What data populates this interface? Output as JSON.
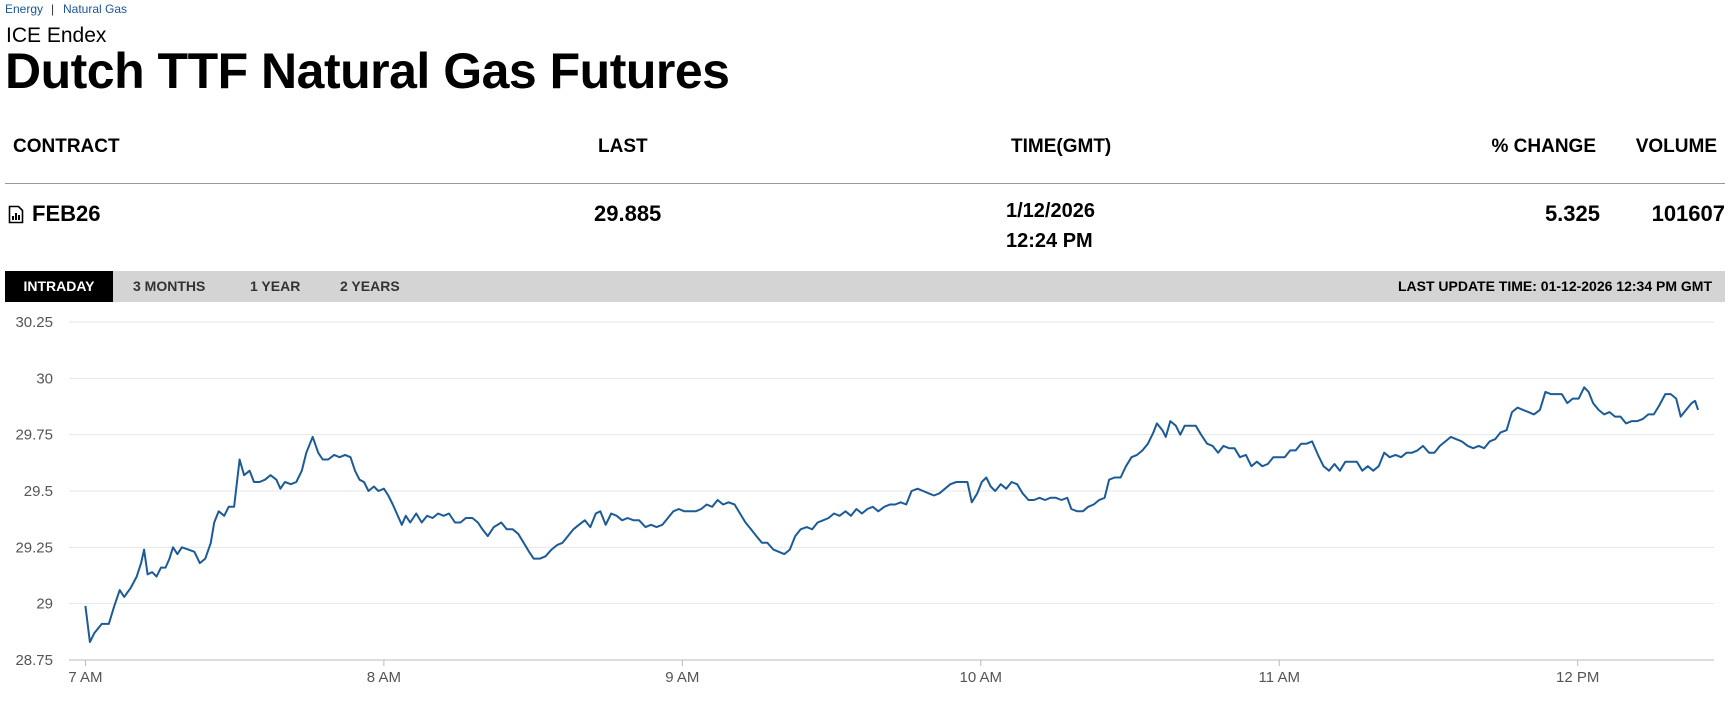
{
  "breadcrumb": {
    "items": [
      "Energy",
      "Natural Gas"
    ],
    "separator": "|"
  },
  "header": {
    "exchange": "ICE Endex",
    "title": "Dutch TTF Natural Gas Futures"
  },
  "table": {
    "columns": [
      "CONTRACT",
      "LAST",
      "TIME(GMT)",
      "% CHANGE",
      "VOLUME"
    ],
    "rows": [
      [
        "FEB26",
        "29.885",
        [
          "1/12/2026",
          "12:24 PM"
        ],
        "5.325",
        "101607"
      ]
    ]
  },
  "tabs": {
    "items": [
      "INTRADAY",
      "3 MONTHS",
      "1 YEAR",
      "2 YEARS"
    ],
    "active": 0
  },
  "last_update": "LAST UPDATE TIME: 01-12-2026 12:34 PM GMT",
  "chart_data": {
    "type": "line",
    "color": "#1d5b96",
    "grid": true,
    "xlim": [
      -3.3,
      327.4
    ],
    "xticks": [
      {
        "value": 0,
        "label": "7 AM"
      },
      {
        "value": 60,
        "label": "8 AM"
      },
      {
        "value": 120,
        "label": "9 AM"
      },
      {
        "value": 180,
        "label": "10 AM"
      },
      {
        "value": 240,
        "label": "11 AM"
      },
      {
        "value": 300,
        "label": "12 PM"
      }
    ],
    "ylim": [
      28.75,
      30.25
    ],
    "yticks": [
      28.75,
      29,
      29.25,
      29.5,
      29.75,
      30,
      30.25
    ],
    "x": [
      0,
      0.9,
      1.8,
      3.3,
      4.7,
      5.8,
      6.9,
      7.8,
      9.1,
      10.3,
      11.2,
      11.8,
      12.5,
      13.4,
      14.3,
      15.2,
      16.1,
      16.9,
      17.6,
      18.5,
      19.4,
      20.7,
      21.9,
      23.0,
      24.1,
      25.2,
      25.9,
      26.8,
      27.9,
      28.8,
      29.9,
      31.0,
      31.9,
      33.0,
      33.9,
      35.0,
      36.1,
      37.2,
      38.4,
      39.2,
      40.1,
      41.3,
      42.4,
      43.5,
      44.4,
      45.7,
      46.8,
      47.7,
      48.8,
      50.0,
      51.1,
      52.2,
      53.3,
      54.2,
      55.1,
      56.0,
      56.9,
      58.0,
      58.9,
      60.0,
      60.9,
      61.8,
      63.6,
      64.4,
      65.3,
      66.5,
      67.6,
      68.7,
      69.8,
      70.9,
      72.0,
      73.1,
      74.3,
      75.4,
      76.5,
      77.8,
      78.9,
      79.8,
      80.9,
      82.1,
      83.6,
      84.7,
      85.9,
      87.0,
      88.1,
      89.2,
      90.1,
      91.4,
      92.5,
      93.7,
      94.8,
      95.9,
      97.0,
      98.1,
      99.2,
      100.4,
      101.5,
      102.6,
      103.5,
      104.6,
      105.7,
      106.8,
      107.9,
      109.0,
      110.2,
      111.3,
      112.6,
      113.7,
      114.8,
      116.0,
      117.1,
      118.2,
      119.3,
      120.4,
      121.5,
      122.7,
      123.8,
      124.9,
      126.0,
      127.1,
      128.2,
      129.3,
      130.5,
      131.6,
      132.7,
      133.8,
      134.9,
      136.0,
      137.1,
      138.3,
      139.4,
      140.5,
      141.6,
      142.7,
      143.8,
      145.0,
      146.1,
      147.2,
      148.3,
      149.4,
      150.5,
      151.6,
      152.8,
      153.9,
      155.0,
      156.1,
      157.2,
      158.3,
      159.4,
      160.6,
      161.7,
      162.8,
      163.9,
      165.0,
      166.1,
      167.3,
      168.4,
      169.5,
      170.6,
      171.7,
      172.8,
      173.9,
      175.1,
      176.2,
      177.3,
      178.2,
      179.3,
      180.2,
      181.1,
      182.0,
      182.9,
      184.0,
      185.1,
      186.2,
      187.3,
      188.4,
      189.6,
      190.7,
      191.8,
      192.9,
      194.0,
      195.1,
      196.2,
      197.4,
      198.2,
      199.4,
      200.5,
      201.6,
      202.7,
      203.8,
      204.9,
      205.8,
      206.9,
      208.1,
      209.2,
      210.3,
      211.4,
      212.5,
      213.6,
      214.7,
      215.4,
      216.5,
      217.2,
      218.1,
      219.2,
      220.1,
      221.0,
      222.1,
      223.2,
      224.3,
      225.5,
      226.6,
      227.7,
      228.8,
      229.9,
      231.0,
      232.1,
      233.3,
      234.4,
      235.5,
      236.6,
      237.7,
      238.8,
      240.0,
      241.1,
      242.2,
      243.3,
      244.4,
      245.5,
      246.6,
      247.8,
      248.9,
      250.0,
      251.1,
      252.2,
      253.3,
      254.4,
      255.6,
      256.7,
      257.8,
      258.9,
      260.0,
      261.1,
      262.2,
      263.4,
      264.5,
      265.6,
      266.7,
      267.8,
      268.9,
      270.1,
      271.2,
      272.3,
      273.4,
      274.5,
      275.6,
      276.7,
      277.9,
      279.0,
      280.1,
      281.2,
      282.3,
      283.4,
      284.5,
      285.7,
      286.8,
      287.9,
      289.0,
      290.1,
      291.2,
      292.4,
      293.5,
      294.6,
      295.7,
      296.8,
      297.9,
      299.0,
      300.2,
      301.3,
      302.2,
      303.1,
      304.2,
      305.3,
      306.4,
      307.5,
      308.6,
      309.7,
      310.9,
      312.0,
      313.1,
      314.2,
      315.3,
      316.4,
      317.6,
      318.7,
      319.8,
      320.7,
      321.8,
      322.9,
      323.6,
      324.2
    ],
    "values": [
      28.99,
      28.83,
      28.87,
      28.91,
      28.91,
      28.99,
      29.06,
      29.03,
      29.07,
      29.12,
      29.18,
      29.24,
      29.13,
      29.14,
      29.12,
      29.16,
      29.16,
      29.2,
      29.25,
      29.22,
      29.25,
      29.24,
      29.23,
      29.18,
      29.2,
      29.27,
      29.36,
      29.41,
      29.39,
      29.43,
      29.43,
      29.64,
      29.57,
      29.59,
      29.54,
      29.54,
      29.55,
      29.57,
      29.55,
      29.51,
      29.54,
      29.53,
      29.54,
      29.59,
      29.67,
      29.74,
      29.67,
      29.64,
      29.64,
      29.66,
      29.65,
      29.66,
      29.65,
      29.59,
      29.55,
      29.54,
      29.5,
      29.52,
      29.5,
      29.51,
      29.48,
      29.44,
      29.35,
      29.39,
      29.36,
      29.4,
      29.36,
      29.39,
      29.38,
      29.4,
      29.39,
      29.4,
      29.36,
      29.36,
      29.38,
      29.38,
      29.36,
      29.33,
      29.3,
      29.34,
      29.36,
      29.33,
      29.33,
      29.31,
      29.27,
      29.23,
      29.2,
      29.2,
      29.21,
      29.24,
      29.26,
      29.27,
      29.3,
      29.33,
      29.35,
      29.37,
      29.34,
      29.4,
      29.41,
      29.35,
      29.4,
      29.39,
      29.37,
      29.38,
      29.37,
      29.37,
      29.34,
      29.35,
      29.34,
      29.35,
      29.38,
      29.41,
      29.42,
      29.41,
      29.41,
      29.41,
      29.42,
      29.44,
      29.43,
      29.46,
      29.44,
      29.45,
      29.44,
      29.4,
      29.36,
      29.33,
      29.3,
      29.27,
      29.27,
      29.24,
      29.23,
      29.22,
      29.24,
      29.3,
      29.33,
      29.34,
      29.33,
      29.36,
      29.37,
      29.38,
      29.4,
      29.39,
      29.41,
      29.39,
      29.42,
      29.4,
      29.42,
      29.43,
      29.41,
      29.43,
      29.44,
      29.44,
      29.45,
      29.44,
      29.5,
      29.51,
      29.5,
      29.49,
      29.48,
      29.49,
      29.51,
      29.53,
      29.54,
      29.54,
      29.54,
      29.45,
      29.49,
      29.54,
      29.56,
      29.52,
      29.5,
      29.53,
      29.51,
      29.54,
      29.53,
      29.49,
      29.46,
      29.46,
      29.47,
      29.46,
      29.47,
      29.47,
      29.46,
      29.47,
      29.42,
      29.41,
      29.41,
      29.43,
      29.44,
      29.46,
      29.47,
      29.55,
      29.56,
      29.56,
      29.61,
      29.65,
      29.66,
      29.68,
      29.71,
      29.76,
      29.8,
      29.77,
      29.74,
      29.81,
      29.79,
      29.75,
      29.79,
      29.79,
      29.79,
      29.75,
      29.71,
      29.7,
      29.67,
      29.7,
      29.69,
      29.69,
      29.65,
      29.66,
      29.61,
      29.63,
      29.61,
      29.62,
      29.65,
      29.65,
      29.65,
      29.68,
      29.68,
      29.71,
      29.71,
      29.72,
      29.66,
      29.61,
      29.59,
      29.62,
      29.59,
      29.63,
      29.63,
      29.63,
      29.59,
      29.61,
      29.59,
      29.61,
      29.67,
      29.65,
      29.66,
      29.65,
      29.67,
      29.67,
      29.68,
      29.7,
      29.67,
      29.67,
      29.7,
      29.72,
      29.74,
      29.73,
      29.72,
      29.7,
      29.69,
      29.7,
      29.69,
      29.72,
      29.73,
      29.76,
      29.77,
      29.85,
      29.87,
      29.86,
      29.85,
      29.84,
      29.86,
      29.94,
      29.93,
      29.93,
      29.93,
      29.89,
      29.91,
      29.91,
      29.96,
      29.94,
      29.89,
      29.86,
      29.84,
      29.85,
      29.83,
      29.83,
      29.8,
      29.81,
      29.81,
      29.82,
      29.84,
      29.84,
      29.88,
      29.93,
      29.93,
      29.91,
      29.83,
      29.86,
      29.89,
      29.9,
      29.86
    ]
  }
}
